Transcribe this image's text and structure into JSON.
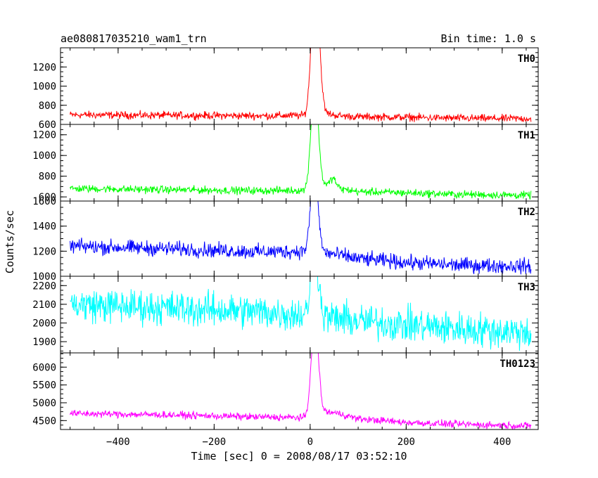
{
  "chart_data": {
    "type": "line",
    "title": "ae080817035210_wam1_trn",
    "subtitle": "Bin time: 1.0 s",
    "xlabel": "Time [sec] 0 = 2008/08/17 03:52:10",
    "ylabel": "Counts/sec",
    "xlim": [
      -520,
      475
    ],
    "x_data_range": [
      -500,
      460
    ],
    "x_ticks": [
      -400,
      -200,
      0,
      200,
      400
    ],
    "grid": false,
    "legend": "panel labels top-right",
    "panels": [
      {
        "name": "TH0",
        "color": "#ff0000",
        "ylim": [
          600,
          1400
        ],
        "y_ticks": [
          600,
          800,
          1000,
          1200
        ],
        "series": {
          "baseline_x": [
            -500,
            -300,
            -100,
            0,
            30,
            60,
            100,
            200,
            300,
            460
          ],
          "baseline_y": [
            700,
            695,
            690,
            695,
            720,
            690,
            680,
            675,
            665,
            660
          ],
          "noise": 30,
          "peaks": [
            {
              "x": 5,
              "y": 1400
            },
            {
              "x": 12,
              "y": 1320
            },
            {
              "x": 18,
              "y": 1200
            }
          ]
        }
      },
      {
        "name": "TH1",
        "color": "#00ff00",
        "ylim": [
          560,
          1300
        ],
        "y_ticks": [
          600,
          800,
          1000,
          1200
        ],
        "series": {
          "baseline_x": [
            -500,
            -300,
            -100,
            0,
            30,
            60,
            100,
            200,
            300,
            460
          ],
          "baseline_y": [
            680,
            670,
            660,
            665,
            720,
            680,
            650,
            640,
            625,
            615
          ],
          "noise": 28,
          "peaks": [
            {
              "x": 5,
              "y": 1300
            },
            {
              "x": 14,
              "y": 1250
            },
            {
              "x": 48,
              "y": 780
            }
          ]
        }
      },
      {
        "name": "TH2",
        "color": "#0000ff",
        "ylim": [
          1000,
          1600
        ],
        "y_ticks": [
          1000,
          1200,
          1400,
          1600
        ],
        "series": {
          "baseline_x": [
            -500,
            -300,
            -100,
            0,
            30,
            100,
            200,
            300,
            460
          ],
          "baseline_y": [
            1240,
            1220,
            1195,
            1200,
            1190,
            1140,
            1110,
            1090,
            1080
          ],
          "noise": 45,
          "peaks": [
            {
              "x": 4,
              "y": 1560
            },
            {
              "x": 13,
              "y": 1600
            }
          ]
        }
      },
      {
        "name": "TH3",
        "color": "#00ffff",
        "ylim": [
          1840,
          2250
        ],
        "y_ticks": [
          1900,
          2000,
          2100,
          2200
        ],
        "series": {
          "baseline_x": [
            -500,
            -300,
            -100,
            0,
            100,
            200,
            300,
            460
          ],
          "baseline_y": [
            2100,
            2080,
            2060,
            2040,
            2010,
            1990,
            1970,
            1950
          ],
          "noise": 70,
          "peaks": [
            {
              "x": 5,
              "y": 2250
            },
            {
              "x": 14,
              "y": 2250
            }
          ]
        }
      },
      {
        "name": "TH0123",
        "color": "#ff00ff",
        "ylim": [
          4250,
          6400
        ],
        "y_ticks": [
          4500,
          5000,
          5500,
          6000
        ],
        "series": {
          "baseline_x": [
            -500,
            -300,
            -100,
            0,
            30,
            60,
            100,
            200,
            300,
            460
          ],
          "baseline_y": [
            4700,
            4660,
            4600,
            4580,
            4750,
            4700,
            4550,
            4450,
            4400,
            4350
          ],
          "noise": 75,
          "peaks": [
            {
              "x": 6,
              "y": 6400
            },
            {
              "x": 14,
              "y": 6200
            }
          ]
        }
      }
    ]
  }
}
